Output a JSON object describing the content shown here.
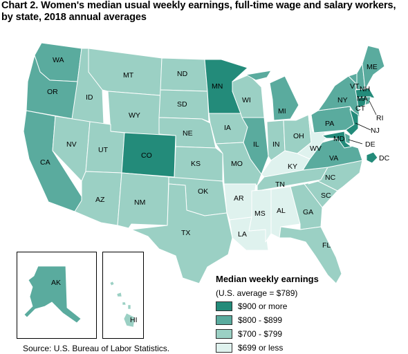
{
  "title": "Chart 2. Women's median usual weekly earnings, full-time wage and salary workers, by state, 2018 annual averages",
  "source": "Source: U.S. Bureau of Labor Statistics.",
  "legend": {
    "title": "Median weekly earnings",
    "subtitle": "(U.S. average = $789)",
    "items": [
      {
        "label": "$900 or more",
        "color": "#238b7a"
      },
      {
        "label": "$800 - $899",
        "color": "#5aab9e"
      },
      {
        "label": "$700 - $799",
        "color": "#9bd0c4"
      },
      {
        "label": "$699 or less",
        "color": "#dff2ee"
      }
    ]
  },
  "states": {
    "WA": "$800 - $899",
    "OR": "$800 - $899",
    "CA": "$800 - $899",
    "ID": "$700 - $799",
    "NV": "$700 - $799",
    "MT": "$700 - $799",
    "WY": "$700 - $799",
    "UT": "$700 - $799",
    "AZ": "$700 - $799",
    "CO": "$900 or more",
    "NM": "$700 - $799",
    "ND": "$700 - $799",
    "SD": "$700 - $799",
    "NE": "$700 - $799",
    "KS": "$700 - $799",
    "OK": "$700 - $799",
    "TX": "$700 - $799",
    "MN": "$900 or more",
    "IA": "$700 - $799",
    "MO": "$700 - $799",
    "AR": "$699 or less",
    "LA": "$699 or less",
    "WI": "$700 - $799",
    "IL": "$800 - $899",
    "MS": "$699 or less",
    "MI": "$800 - $899",
    "IN": "$700 - $799",
    "OH": "$700 - $799",
    "KY": "$699 or less",
    "TN": "$700 - $799",
    "AL": "$699 or less",
    "GA": "$700 - $799",
    "FL": "$700 - $799",
    "SC": "$700 - $799",
    "NC": "$700 - $799",
    "VA": "$800 - $899",
    "WV": "$699 or less",
    "PA": "$800 - $899",
    "NY": "$800 - $899",
    "VT": "$800 - $899",
    "NH": "$800 - $899",
    "ME": "$800 - $899",
    "MA": "$900 or more",
    "RI": "$800 - $899",
    "CT": "$900 or more",
    "NJ": "$900 or more",
    "DE": "$800 - $899",
    "MD": "$900 or more",
    "DC": "$900 or more",
    "AK": "$800 - $899",
    "HI": "$700 - $799"
  }
}
